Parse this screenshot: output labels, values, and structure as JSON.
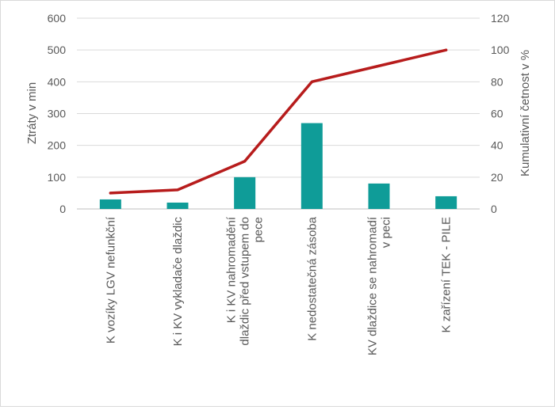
{
  "chart_data": {
    "type": "bar+line",
    "categories": [
      [
        "K vozíky LGV nefunkční"
      ],
      [
        "K i KV vykladače dlaždic"
      ],
      [
        "K i KV nahromadění",
        "dlaždic před vstupem do",
        "pece"
      ],
      [
        "K nedostatečná zásoba"
      ],
      [
        "KV dlaždice se nahromadí",
        "v peci"
      ],
      [
        "K zařízení TEK - PILE"
      ]
    ],
    "series": [
      {
        "values": [
          30,
          20,
          100,
          270,
          80,
          40
        ],
        "axis": "left",
        "color": "#0f9c98"
      },
      {
        "values": [
          10,
          12,
          30,
          80,
          90,
          100
        ],
        "axis": "right",
        "color": "#b71c1c"
      }
    ],
    "ylabel": "Ztráty v min",
    "ylabel_right": "Kumulativní četnost v %",
    "ylim": [
      0,
      600
    ],
    "ylim_right": [
      0,
      120
    ],
    "yticks": [
      "0",
      "100",
      "200",
      "300",
      "400",
      "500",
      "600"
    ],
    "yticks_right": [
      "0",
      "20",
      "40",
      "60",
      "80",
      "100",
      "120"
    ],
    "grid": true
  }
}
